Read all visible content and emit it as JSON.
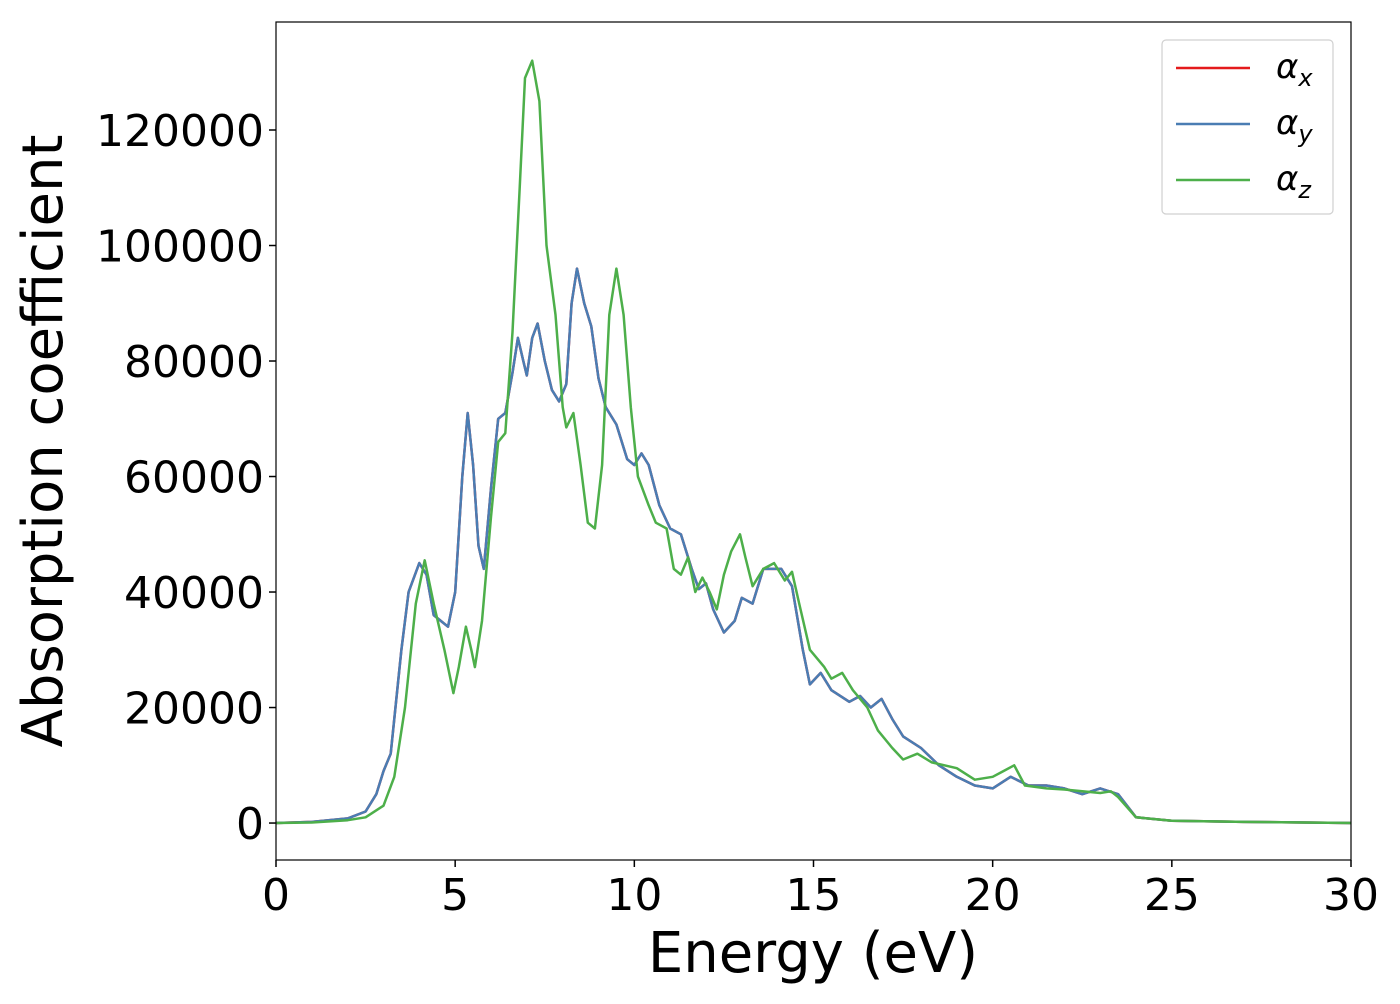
{
  "chart_data": {
    "type": "line",
    "xlabel": "Energy (eV)",
    "ylabel": "Absorption coefficient",
    "xlim": [
      0,
      30
    ],
    "ylim": [
      -6400,
      138700
    ],
    "xticks": [
      0,
      5,
      10,
      15,
      20,
      25,
      30
    ],
    "yticks": [
      0,
      20000,
      40000,
      60000,
      80000,
      100000,
      120000
    ],
    "legend": "upper right",
    "series": [
      {
        "name": "αx",
        "color": "#e41a1c",
        "x": [
          0,
          1,
          2,
          2.5,
          2.8,
          3.0,
          3.2,
          3.5,
          3.7,
          4.0,
          4.2,
          4.4,
          4.6,
          4.8,
          5.0,
          5.2,
          5.35,
          5.5,
          5.65,
          5.8,
          6.0,
          6.2,
          6.4,
          6.6,
          6.75,
          6.9,
          7.0,
          7.15,
          7.3,
          7.5,
          7.7,
          7.9,
          8.1,
          8.25,
          8.4,
          8.6,
          8.8,
          9.0,
          9.2,
          9.5,
          9.8,
          10.0,
          10.2,
          10.4,
          10.7,
          11.0,
          11.3,
          11.6,
          11.8,
          12.0,
          12.2,
          12.5,
          12.8,
          13.0,
          13.3,
          13.6,
          13.9,
          14.1,
          14.4,
          14.7,
          14.9,
          15.2,
          15.5,
          16.0,
          16.3,
          16.6,
          16.9,
          17.2,
          17.5,
          18.0,
          18.5,
          19.0,
          19.5,
          20.0,
          20.5,
          21.0,
          21.5,
          22.0,
          22.5,
          23.0,
          23.5,
          24.0,
          25,
          27,
          30
        ],
        "values": [
          0,
          200,
          800,
          2000,
          5000,
          9000,
          12000,
          30000,
          40000,
          45000,
          43000,
          36000,
          35000,
          34000,
          40000,
          60000,
          71000,
          62000,
          48000,
          44000,
          58000,
          70000,
          71000,
          78000,
          84000,
          80000,
          77500,
          84000,
          86500,
          80000,
          75000,
          73000,
          76000,
          90000,
          96000,
          90000,
          86000,
          77000,
          72000,
          69000,
          63000,
          62000,
          64000,
          62000,
          55000,
          51000,
          50000,
          44000,
          40500,
          41500,
          37000,
          33000,
          35000,
          39000,
          38000,
          44000,
          44000,
          44000,
          41000,
          30000,
          24000,
          26000,
          23000,
          21000,
          22000,
          20000,
          21500,
          18000,
          15000,
          13000,
          10000,
          8000,
          6500,
          6000,
          8000,
          6500,
          6500,
          6000,
          5000,
          6000,
          5000,
          1000,
          400,
          200,
          0
        ]
      },
      {
        "name": "αy",
        "color": "#4a7db3",
        "x": [
          0,
          1,
          2,
          2.5,
          2.8,
          3.0,
          3.2,
          3.5,
          3.7,
          4.0,
          4.2,
          4.4,
          4.6,
          4.8,
          5.0,
          5.2,
          5.35,
          5.5,
          5.65,
          5.8,
          6.0,
          6.2,
          6.4,
          6.6,
          6.75,
          6.9,
          7.0,
          7.15,
          7.3,
          7.5,
          7.7,
          7.9,
          8.1,
          8.25,
          8.4,
          8.6,
          8.8,
          9.0,
          9.2,
          9.5,
          9.8,
          10.0,
          10.2,
          10.4,
          10.7,
          11.0,
          11.3,
          11.6,
          11.8,
          12.0,
          12.2,
          12.5,
          12.8,
          13.0,
          13.3,
          13.6,
          13.9,
          14.1,
          14.4,
          14.7,
          14.9,
          15.2,
          15.5,
          16.0,
          16.3,
          16.6,
          16.9,
          17.2,
          17.5,
          18.0,
          18.5,
          19.0,
          19.5,
          20.0,
          20.5,
          21.0,
          21.5,
          22.0,
          22.5,
          23.0,
          23.5,
          24.0,
          25,
          27,
          30
        ],
        "values": [
          0,
          200,
          800,
          2000,
          5000,
          9000,
          12000,
          30000,
          40000,
          45000,
          43000,
          36000,
          35000,
          34000,
          40000,
          60000,
          71000,
          62000,
          48000,
          44000,
          58000,
          70000,
          71000,
          78000,
          84000,
          80000,
          77500,
          84000,
          86500,
          80000,
          75000,
          73000,
          76000,
          90000,
          96000,
          90000,
          86000,
          77000,
          72000,
          69000,
          63000,
          62000,
          64000,
          62000,
          55000,
          51000,
          50000,
          44000,
          40500,
          41500,
          37000,
          33000,
          35000,
          39000,
          38000,
          44000,
          44000,
          44000,
          41000,
          30000,
          24000,
          26000,
          23000,
          21000,
          22000,
          20000,
          21500,
          18000,
          15000,
          13000,
          10000,
          8000,
          6500,
          6000,
          8000,
          6500,
          6500,
          6000,
          5000,
          6000,
          5000,
          1000,
          400,
          200,
          0
        ]
      },
      {
        "name": "αz",
        "color": "#4daf4a",
        "x": [
          0,
          1,
          2,
          2.5,
          3.0,
          3.3,
          3.6,
          3.9,
          4.15,
          4.4,
          4.7,
          4.95,
          5.1,
          5.3,
          5.45,
          5.55,
          5.75,
          6.0,
          6.2,
          6.4,
          6.6,
          6.8,
          6.95,
          7.15,
          7.35,
          7.55,
          7.8,
          8.0,
          8.1,
          8.3,
          8.5,
          8.7,
          8.9,
          9.1,
          9.3,
          9.5,
          9.7,
          9.9,
          10.1,
          10.4,
          10.6,
          10.9,
          11.1,
          11.3,
          11.5,
          11.7,
          11.9,
          12.1,
          12.3,
          12.5,
          12.7,
          12.95,
          13.1,
          13.3,
          13.6,
          13.9,
          14.2,
          14.4,
          14.6,
          14.9,
          15.3,
          15.5,
          15.8,
          16.1,
          16.5,
          16.8,
          17.2,
          17.5,
          17.9,
          18.3,
          19.0,
          19.5,
          20.0,
          20.3,
          20.6,
          20.9,
          21.5,
          22,
          22.5,
          23,
          23.3,
          23.5,
          24,
          25,
          27,
          30
        ],
        "values": [
          0,
          100,
          500,
          1000,
          3000,
          8000,
          20000,
          38000,
          45500,
          38000,
          30000,
          22500,
          27000,
          34000,
          30000,
          27000,
          35000,
          53000,
          66000,
          67500,
          85000,
          110000,
          129000,
          132000,
          125000,
          100000,
          88000,
          72000,
          68500,
          71000,
          62000,
          52000,
          51000,
          62000,
          88000,
          96000,
          88000,
          72000,
          60000,
          55000,
          52000,
          51000,
          44000,
          43000,
          46000,
          40000,
          42500,
          40000,
          37000,
          43000,
          47000,
          50000,
          46000,
          41000,
          44000,
          45000,
          42000,
          43500,
          38000,
          30000,
          27000,
          25000,
          26000,
          23000,
          20000,
          16000,
          13000,
          11000,
          12000,
          10500,
          9500,
          7500,
          8000,
          9000,
          10000,
          6500,
          6000,
          5800,
          5500,
          5200,
          5500,
          4500,
          1000,
          400,
          200,
          0
        ]
      }
    ]
  }
}
